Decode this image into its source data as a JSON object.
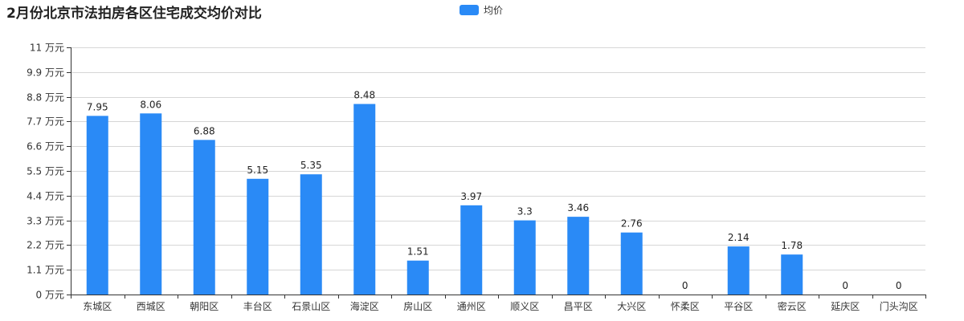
{
  "chart_data": {
    "type": "bar",
    "title": "2月份北京市法拍房各区住宅成交均价对比",
    "categories": [
      "东城区",
      "西城区",
      "朝阳区",
      "丰台区",
      "石景山区",
      "海淀区",
      "房山区",
      "通州区",
      "顺义区",
      "昌平区",
      "大兴区",
      "怀柔区",
      "平谷区",
      "密云区",
      "延庆区",
      "门头沟区"
    ],
    "series": [
      {
        "name": "均价",
        "color": "#2a8af6",
        "values": [
          7.95,
          8.06,
          6.88,
          5.15,
          5.35,
          8.48,
          1.51,
          3.97,
          3.3,
          3.46,
          2.76,
          0,
          2.14,
          1.78,
          0,
          0
        ]
      }
    ],
    "y_ticks": [
      0,
      1.1,
      2.2,
      3.3,
      4.4,
      5.5,
      6.6,
      7.7,
      8.8,
      9.9,
      11
    ],
    "y_unit": "万元",
    "ylim": [
      0,
      11
    ],
    "grid": true,
    "legend_position": "top-center"
  }
}
